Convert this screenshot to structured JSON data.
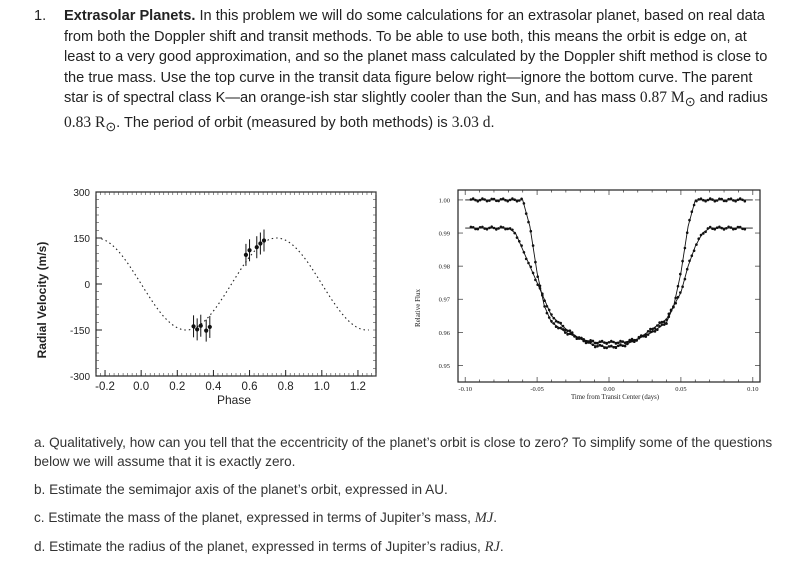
{
  "problem": {
    "number": "1.",
    "title": "Extrasolar Planets.",
    "text_1": " In this problem we will do some calculations for an extrasolar planet, based on real data from both the Doppler shift and transit methods. To be able to use both, this means the orbit is edge on, at least to a very good approximation, and so the planet mass calculated by the Doppler shift method is close to the true mass. Use the top curve in the transit data figure below right—ignore the bottom curve. The parent star is of spectral class K—an orange-ish star slightly cooler than the Sun, and has mass ",
    "mass_value": "0.87 M",
    "sun_symbol": "⊙",
    "text_2": " and radius ",
    "radius_value": "0.83 R",
    "text_3": ". The period of orbit (measured by both methods) is ",
    "period_value": "3.03 d",
    "text_4": "."
  },
  "chart_data": [
    {
      "type": "scatter",
      "title": "",
      "xlabel": "Phase",
      "ylabel": "Radial Velocity (m/s)",
      "xlim": [
        -0.25,
        1.3
      ],
      "ylim": [
        -300,
        300
      ],
      "x_ticks": [
        "-0.2",
        "0.0",
        "0.2",
        "0.4",
        "0.6",
        "0.8",
        "1.0",
        "1.2"
      ],
      "y_ticks": [
        "300",
        "150",
        "0",
        "-150",
        "-300"
      ],
      "fit_amplitude": 150,
      "fit_period": 1.0,
      "fit_phase_of_max": 0.75,
      "points": [
        {
          "x": 0.29,
          "y": -138
        },
        {
          "x": 0.31,
          "y": -148
        },
        {
          "x": 0.33,
          "y": -136
        },
        {
          "x": 0.36,
          "y": -152
        },
        {
          "x": 0.38,
          "y": -140
        },
        {
          "x": 0.58,
          "y": 95
        },
        {
          "x": 0.6,
          "y": 110
        },
        {
          "x": 0.64,
          "y": 120
        },
        {
          "x": 0.66,
          "y": 132
        },
        {
          "x": 0.68,
          "y": 142
        }
      ]
    },
    {
      "type": "line",
      "title": "",
      "xlabel": "Time from Transit Center (days)",
      "ylabel": "Relative Flux",
      "xlim": [
        -0.105,
        0.105
      ],
      "ylim": [
        0.945,
        1.003
      ],
      "x_ticks": [
        "-0.10",
        "-0.05",
        "0.00",
        "0.05",
        "0.10"
      ],
      "y_ticks": [
        "1.00",
        "0.99",
        "0.98",
        "0.97",
        "0.96",
        "0.95"
      ],
      "series": [
        {
          "x": [
            -0.1,
            -0.07,
            -0.06,
            -0.055,
            -0.05,
            -0.045,
            -0.04,
            -0.03,
            -0.02,
            -0.01,
            0.0,
            0.01,
            0.02,
            0.03,
            0.04,
            0.045,
            0.05,
            0.055,
            0.06,
            0.07,
            0.1
          ],
          "y": [
            1.0,
            1.0,
            1.0,
            0.992,
            0.978,
            0.968,
            0.963,
            0.96,
            0.958,
            0.957,
            0.957,
            0.957,
            0.958,
            0.96,
            0.963,
            0.968,
            0.978,
            0.992,
            1.0,
            1.0,
            1.0
          ]
        },
        {
          "x": [
            -0.1,
            -0.07,
            -0.065,
            -0.06,
            -0.05,
            -0.04,
            -0.03,
            -0.02,
            -0.01,
            0.0,
            0.01,
            0.02,
            0.03,
            0.04,
            0.05,
            0.055,
            0.06,
            0.065,
            0.07,
            0.1
          ],
          "y": [
            0.9915,
            0.9915,
            0.99,
            0.985,
            0.975,
            0.965,
            0.961,
            0.958,
            0.956,
            0.9555,
            0.956,
            0.958,
            0.961,
            0.964,
            0.972,
            0.98,
            0.986,
            0.99,
            0.9915,
            0.9915
          ]
        }
      ]
    }
  ],
  "questions": {
    "a": "a. Qualitatively, how can you tell that the eccentricity of the planet’s orbit is close to zero? To simplify some of the questions below we will assume that it is exactly zero.",
    "b": "b. Estimate the semimajor axis of the planet’s orbit, expressed in AU.",
    "c_text": "c. Estimate the mass of the planet, expressed in terms of Jupiter’s mass, ",
    "c_unit": "MJ",
    "d_text": "d. Estimate the radius of the planet, expressed in terms of Jupiter’s radius, ",
    "d_unit": "RJ",
    "end": "."
  }
}
